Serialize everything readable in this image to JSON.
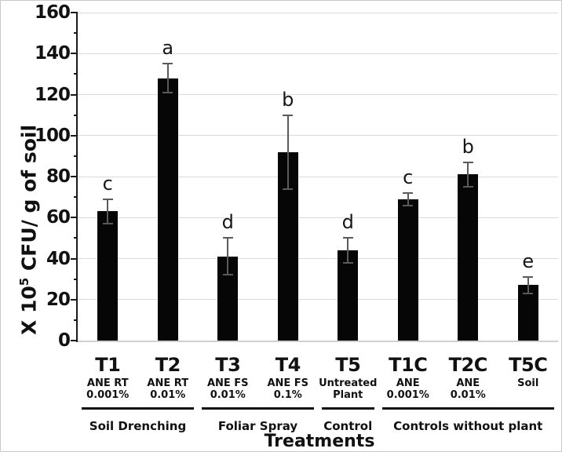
{
  "figure": {
    "x_axis_title": "Treatments",
    "y_axis_title_prefix": "X 10",
    "y_axis_title_sup": "5",
    "y_axis_title_suffix": " CFU/ g of soil"
  },
  "chart_data": {
    "type": "bar",
    "title": "",
    "xlabel": "Treatments",
    "ylabel": "X 10⁵ CFU/ g of soil",
    "ylim": [
      0,
      160
    ],
    "ytick_step": 20,
    "yticks": [
      0,
      20,
      40,
      60,
      80,
      100,
      120,
      140,
      160
    ],
    "grid": true,
    "legend": "none",
    "bar_color": "#060606",
    "error_bar_color": "#5a5a5a",
    "gridline_color": "#dadada",
    "categories": [
      "T1",
      "T2",
      "T3",
      "T4",
      "T5",
      "T1C",
      "T2C",
      "T5C"
    ],
    "sublabels": [
      [
        "ANE RT",
        "0.001%"
      ],
      [
        "ANE RT",
        "0.01%"
      ],
      [
        "ANE FS",
        "0.01%"
      ],
      [
        "ANE FS",
        "0.1%"
      ],
      [
        "Untreated",
        "Plant"
      ],
      [
        "ANE",
        "0.001%"
      ],
      [
        "ANE",
        "0.01%"
      ],
      [
        "Soil"
      ]
    ],
    "values": [
      63,
      128,
      41,
      92,
      44,
      69,
      81,
      27
    ],
    "errors": [
      6,
      7,
      9,
      18,
      6,
      3,
      6,
      4
    ],
    "sig_letters": [
      "c",
      "a",
      "d",
      "b",
      "d",
      "c",
      "b",
      "e"
    ],
    "groups": [
      {
        "label": "Soil Drenching",
        "from": 0,
        "to": 1
      },
      {
        "label": "Foliar Spray",
        "from": 2,
        "to": 3
      },
      {
        "label": "Control",
        "from": 4,
        "to": 4
      },
      {
        "label": "Controls without plant",
        "from": 5,
        "to": 7
      }
    ]
  }
}
